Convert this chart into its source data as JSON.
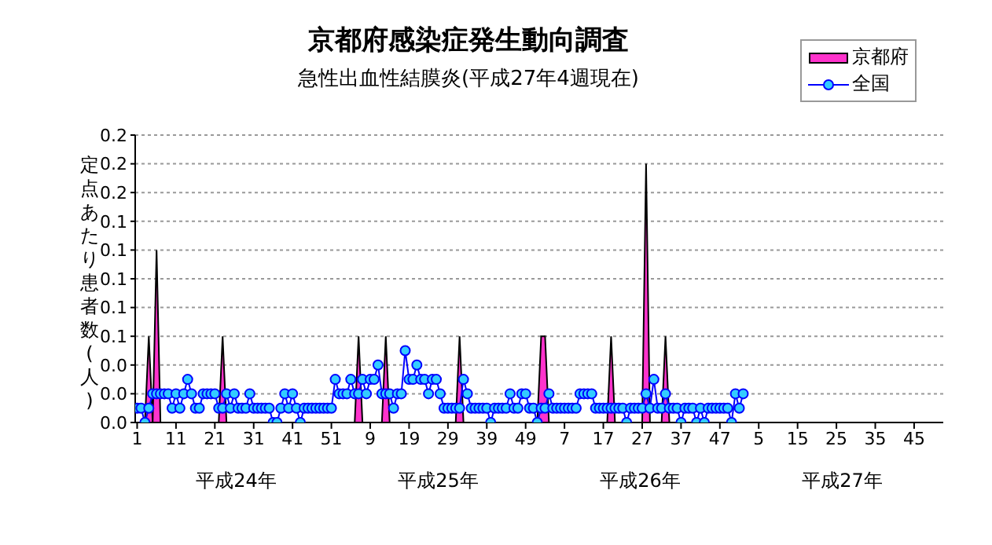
{
  "chart_data": {
    "type": "line",
    "title": "京都府感染症発生動向調査",
    "subtitle": "急性出血性結膜炎(平成27年4週現在)",
    "ylabel": "定点あたり患者数(人)",
    "annotations": [
      "平成24年",
      "平成25年",
      "平成26年",
      "平成27年"
    ],
    "categories": [
      "1",
      null,
      null,
      null,
      null,
      null,
      null,
      null,
      null,
      null,
      "11",
      null,
      null,
      null,
      null,
      null,
      null,
      null,
      null,
      null,
      "21",
      null,
      null,
      null,
      null,
      null,
      null,
      null,
      null,
      null,
      "31",
      null,
      null,
      null,
      null,
      null,
      null,
      null,
      null,
      null,
      "41",
      null,
      null,
      null,
      null,
      null,
      null,
      null,
      null,
      null,
      "51",
      null,
      null,
      null,
      null,
      null,
      null,
      null,
      null,
      null,
      "9",
      null,
      null,
      null,
      null,
      null,
      null,
      null,
      null,
      null,
      "19",
      null,
      null,
      null,
      null,
      null,
      null,
      null,
      null,
      null,
      "29",
      null,
      null,
      null,
      null,
      null,
      null,
      null,
      null,
      null,
      "39",
      null,
      null,
      null,
      null,
      null,
      null,
      null,
      null,
      null,
      "49",
      null,
      null,
      null,
      null,
      null,
      null,
      null,
      null,
      null,
      "7",
      null,
      null,
      null,
      null,
      null,
      null,
      null,
      null,
      null,
      "17",
      null,
      null,
      null,
      null,
      null,
      null,
      null,
      null,
      null,
      "27",
      null,
      null,
      null,
      null,
      null,
      null,
      null,
      null,
      null,
      "37",
      null,
      null,
      null,
      null,
      null,
      null,
      null,
      null,
      null,
      "47",
      null,
      null,
      null,
      null,
      null,
      null,
      null,
      null,
      null,
      "5",
      null,
      null,
      null,
      null,
      null,
      null,
      null,
      null,
      null,
      "15",
      null,
      null,
      null,
      null,
      null,
      null,
      null,
      null,
      null,
      "25",
      null,
      null,
      null,
      null,
      null,
      null,
      null,
      null,
      null,
      "35",
      null,
      null,
      null,
      null,
      null,
      null,
      null,
      null,
      null,
      "45",
      null,
      null,
      null,
      null,
      null,
      null,
      null
    ],
    "series": [
      {
        "name": "京都府",
        "type": "area",
        "color": "#ff33cc",
        "values": [
          0,
          0,
          0,
          0.06,
          0,
          0.12,
          0,
          0,
          0,
          0,
          0,
          0,
          0,
          0,
          0,
          0,
          0,
          0,
          0,
          0,
          0,
          0,
          0.06,
          0,
          0,
          0,
          0,
          0,
          0,
          0,
          0,
          0,
          0,
          0,
          0,
          0,
          0,
          0,
          0,
          0,
          0,
          0,
          0,
          0,
          0,
          0,
          0,
          0,
          0,
          0,
          0,
          0,
          0,
          0,
          0,
          0,
          0,
          0.06,
          0,
          0,
          0,
          0,
          0,
          0,
          0.06,
          0,
          0,
          0,
          0,
          0,
          0,
          0,
          0,
          0,
          0,
          0,
          0,
          0,
          0,
          0,
          0,
          0,
          0,
          0.06,
          0,
          0,
          0,
          0,
          0,
          0,
          0,
          0,
          0,
          0,
          0,
          0,
          0,
          0,
          0,
          0,
          0,
          0,
          0,
          0,
          0.06,
          0.06,
          0,
          0,
          0,
          0,
          0,
          0,
          0,
          0,
          0,
          0,
          0,
          0,
          0,
          0,
          0,
          0,
          0.06,
          0,
          0,
          0,
          0,
          0,
          0,
          0,
          0,
          0.18,
          0,
          0,
          0,
          0,
          0.06,
          0,
          0,
          0,
          0,
          0,
          0,
          0,
          0,
          0,
          0,
          0,
          0,
          0,
          0,
          0,
          0,
          0,
          0,
          0,
          0,
          0,
          null,
          null,
          null,
          null,
          null,
          null,
          null,
          null,
          null,
          null,
          null,
          null,
          null,
          null,
          null,
          null,
          null,
          null,
          null,
          null,
          null,
          null,
          null,
          null,
          null,
          null,
          null,
          null,
          null,
          null,
          null,
          null,
          null,
          null,
          null,
          null,
          null,
          null,
          null,
          null,
          null,
          null,
          null,
          null,
          null,
          null,
          null,
          null,
          null,
          null
        ]
      },
      {
        "name": "全国",
        "color": "#0000ff",
        "marker": "circle",
        "values": [
          0.01,
          0.01,
          0,
          0.01,
          0.02,
          0.02,
          0.02,
          0.02,
          0.02,
          0.01,
          0.02,
          0.01,
          0.02,
          0.03,
          0.02,
          0.01,
          0.01,
          0.02,
          0.02,
          0.02,
          0.02,
          0.01,
          0.01,
          0.02,
          0.01,
          0.02,
          0.01,
          0.01,
          0.01,
          0.02,
          0.01,
          0.01,
          0.01,
          0.01,
          0.01,
          0,
          0,
          0.01,
          0.02,
          0.01,
          0.02,
          0.01,
          0,
          0.01,
          0.01,
          0.01,
          0.01,
          0.01,
          0.01,
          0.01,
          0.01,
          0.03,
          0.02,
          0.02,
          0.02,
          0.03,
          0.02,
          0.02,
          0.03,
          0.02,
          0.03,
          0.03,
          0.04,
          0.02,
          0.02,
          0.02,
          0.01,
          0.02,
          0.02,
          0.05,
          0.03,
          0.03,
          0.04,
          0.03,
          0.03,
          0.02,
          0.03,
          0.03,
          0.02,
          0.01,
          0.01,
          0.01,
          0.01,
          0.01,
          0.03,
          0.02,
          0.01,
          0.01,
          0.01,
          0.01,
          0.01,
          0,
          0.01,
          0.01,
          0.01,
          0.01,
          0.02,
          0.01,
          0.01,
          0.02,
          0.02,
          0.01,
          0.01,
          0,
          0.01,
          0.01,
          0.02,
          0.01,
          0.01,
          0.01,
          0.01,
          0.01,
          0.01,
          0.01,
          0.02,
          0.02,
          0.02,
          0.02,
          0.01,
          0.01,
          0.01,
          0.01,
          0.01,
          0.01,
          0.01,
          0.01,
          0,
          0.01,
          0.01,
          0.01,
          0.01,
          0.02,
          0.01,
          0.03,
          0.01,
          0.01,
          0.02,
          0.01,
          0.01,
          0.01,
          0,
          0.01,
          0.01,
          0.01,
          0,
          0.01,
          0,
          0.01,
          0.01,
          0.01,
          0.01,
          0.01,
          0.01,
          0,
          0.02,
          0.01,
          0.02,
          null,
          null,
          null,
          null,
          null,
          null,
          null,
          null,
          null,
          null,
          null,
          null,
          null,
          null,
          null,
          null,
          null,
          null,
          null,
          null,
          null,
          null,
          null,
          null,
          null,
          null,
          null,
          null,
          null,
          null,
          null,
          null,
          null,
          null,
          null,
          null,
          null,
          null,
          null,
          null,
          null,
          null,
          null,
          null,
          null,
          null,
          null,
          null,
          null,
          null,
          null
        ]
      }
    ],
    "ylim": [
      0,
      0.2
    ],
    "yticks": [
      {
        "value": 0,
        "label": "0.0"
      },
      {
        "value": 0.02,
        "label": "0.0"
      },
      {
        "value": 0.04,
        "label": "0.0"
      },
      {
        "value": 0.06,
        "label": "0.1"
      },
      {
        "value": 0.08,
        "label": "0.1"
      },
      {
        "value": 0.1,
        "label": "0.1"
      },
      {
        "value": 0.12,
        "label": "0.1"
      },
      {
        "value": 0.14,
        "label": "0.1"
      },
      {
        "value": 0.16,
        "label": "0.2"
      },
      {
        "value": 0.18,
        "label": "0.2"
      },
      {
        "value": 0.2,
        "label": "0.2"
      }
    ],
    "grid": "y",
    "legend": "top right"
  }
}
